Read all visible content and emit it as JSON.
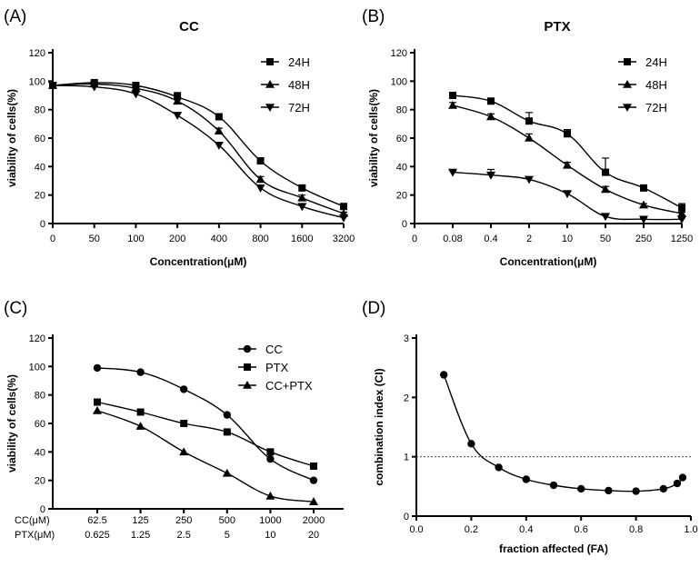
{
  "chart_data": [
    {
      "id": "A",
      "letter": "(A)",
      "title": "CC",
      "type": "line",
      "xlabel": "Concentration(μM)",
      "ylabel": "viability of cells(%)",
      "x_categorical": true,
      "x_ticks": [
        "0",
        "50",
        "100",
        "200",
        "400",
        "800",
        "1600",
        "3200"
      ],
      "ylim": [
        0,
        120
      ],
      "y_ticks": [
        0,
        20,
        40,
        60,
        80,
        100,
        120
      ],
      "legend_position": "top-right",
      "series": [
        {
          "name": "24H",
          "marker": "square",
          "x": [
            0,
            50,
            100,
            200,
            400,
            800,
            1600,
            3200
          ],
          "values": [
            97,
            99,
            97,
            89,
            75,
            44,
            25,
            12
          ],
          "err": [
            1,
            1,
            1.5,
            3,
            2,
            2,
            1.5,
            1
          ]
        },
        {
          "name": "48H",
          "marker": "triangle-up",
          "x": [
            0,
            50,
            100,
            200,
            400,
            800,
            1600,
            3200
          ],
          "values": [
            97,
            98,
            95,
            86,
            65,
            31,
            18,
            7
          ],
          "err": [
            1,
            1,
            1.5,
            2,
            2,
            2,
            2,
            1
          ]
        },
        {
          "name": "72H",
          "marker": "triangle-down",
          "x": [
            0,
            50,
            100,
            200,
            400,
            800,
            1600,
            3200
          ],
          "values": [
            97,
            96,
            91,
            76,
            55,
            25,
            12,
            4
          ],
          "err": [
            1,
            1,
            1.5,
            1.5,
            2,
            2,
            1,
            1
          ]
        }
      ],
      "curve": "smooth"
    },
    {
      "id": "B",
      "letter": "(B)",
      "title": "PTX",
      "type": "line",
      "xlabel": "Concentration(μM)",
      "ylabel": "viability of cells(%)",
      "x_categorical": true,
      "x_ticks": [
        "0",
        "0.08",
        "0.4",
        "2",
        "10",
        "50",
        "250",
        "1250"
      ],
      "ylim": [
        0,
        120
      ],
      "y_ticks": [
        0,
        20,
        40,
        60,
        80,
        100,
        120
      ],
      "legend_position": "top-right",
      "series": [
        {
          "name": "24H",
          "marker": "square",
          "x": [
            0.08,
            0.4,
            2,
            10,
            50,
            250,
            1250
          ],
          "values": [
            90,
            86,
            72,
            63,
            36,
            25,
            11
          ],
          "err": [
            1,
            1,
            6,
            3,
            10,
            1.5,
            3
          ]
        },
        {
          "name": "48H",
          "marker": "triangle-up",
          "x": [
            0.08,
            0.4,
            2,
            10,
            50,
            250,
            1250
          ],
          "values": [
            83,
            75,
            60,
            41,
            24,
            13,
            7
          ],
          "err": [
            2,
            2,
            3,
            2,
            2,
            1,
            1
          ]
        },
        {
          "name": "72H",
          "marker": "triangle-down",
          "x": [
            0.08,
            0.4,
            2,
            10,
            50,
            250,
            1250
          ],
          "values": [
            36,
            34,
            31,
            21,
            5,
            3,
            3
          ],
          "err": [
            1,
            4,
            1.5,
            1,
            1,
            1,
            1
          ]
        }
      ],
      "curve": "smooth"
    },
    {
      "id": "C",
      "letter": "(C)",
      "title": "",
      "type": "line",
      "xlabel": "",
      "ylabel": "viability of cells(%)",
      "x_categorical": true,
      "x_ticks": [],
      "x_tick_rows": [
        {
          "label": "CC(μM)",
          "ticks": [
            "62.5",
            "125",
            "250",
            "500",
            "1000",
            "2000"
          ]
        },
        {
          "label": "PTX(μM)",
          "ticks": [
            "0.625",
            "1.25",
            "2.5",
            "5",
            "10",
            "20"
          ]
        }
      ],
      "ylim": [
        0,
        120
      ],
      "y_ticks": [
        0,
        20,
        40,
        60,
        80,
        100,
        120
      ],
      "legend_position": "top-right",
      "series": [
        {
          "name": "CC",
          "marker": "circle",
          "values": [
            99,
            96,
            84,
            66,
            35,
            20
          ]
        },
        {
          "name": "PTX",
          "marker": "square",
          "values": [
            75,
            68,
            60,
            54,
            40,
            30
          ]
        },
        {
          "name": "CC+PTX",
          "marker": "triangle-up",
          "values": [
            69,
            58,
            40,
            25,
            9,
            5
          ]
        }
      ],
      "curve": "smooth"
    },
    {
      "id": "D",
      "letter": "(D)",
      "title": "",
      "type": "line",
      "xlabel": "fraction affected (FA)",
      "ylabel": "combination index (CI)",
      "x_categorical": false,
      "xlim": [
        0,
        1
      ],
      "x_ticks": [
        "0.0",
        "0.2",
        "0.4",
        "0.6",
        "0.8",
        "1.0"
      ],
      "ylim": [
        0,
        3
      ],
      "y_ticks": [
        0,
        1,
        2,
        3
      ],
      "reference_line": {
        "y": 1,
        "style": "dotted"
      },
      "series": [
        {
          "name": "",
          "marker": "circle",
          "x": [
            0.1,
            0.2,
            0.3,
            0.4,
            0.5,
            0.6,
            0.7,
            0.8,
            0.9,
            0.95,
            0.97
          ],
          "values": [
            2.38,
            1.22,
            0.82,
            0.62,
            0.52,
            0.46,
            0.43,
            0.42,
            0.46,
            0.55,
            0.65
          ]
        }
      ],
      "curve": "smooth"
    }
  ]
}
